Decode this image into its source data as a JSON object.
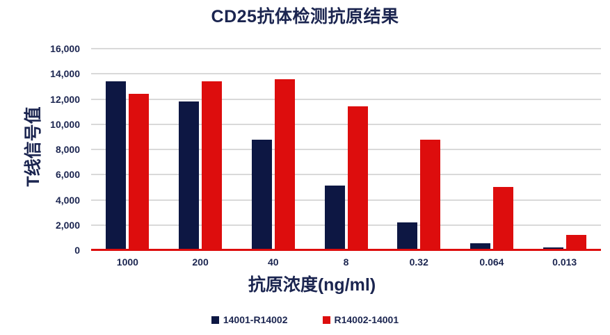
{
  "title": "CD25抗体检测抗原结果",
  "chart_data": {
    "type": "bar",
    "title": "CD25抗体检测抗原结果",
    "xlabel": "抗原浓度(ng/ml)",
    "ylabel": "T线信号值",
    "categories": [
      "1000",
      "200",
      "40",
      "8",
      "0.32",
      "0.064",
      "0.013"
    ],
    "series": [
      {
        "name": "14001-R14002",
        "color": "#0d1743",
        "values": [
          13400,
          11800,
          8800,
          5150,
          2200,
          580,
          200
        ]
      },
      {
        "name": "R14002-14001",
        "color": "#dd0d0d",
        "values": [
          12400,
          13400,
          13600,
          11400,
          8800,
          5000,
          1200
        ]
      }
    ],
    "ylim": [
      0,
      16000
    ],
    "ytick_step": 2000,
    "yticks": [
      "0",
      "2,000",
      "4,000",
      "6,000",
      "8,000",
      "10,000",
      "12,000",
      "14,000",
      "16,000"
    ],
    "grid": true,
    "legend_position": "bottom",
    "colors": {
      "text": "#1b2550",
      "gridline": "#d9d9d9",
      "axis_line": "#dd0d0d",
      "background": "#ffffff"
    }
  }
}
